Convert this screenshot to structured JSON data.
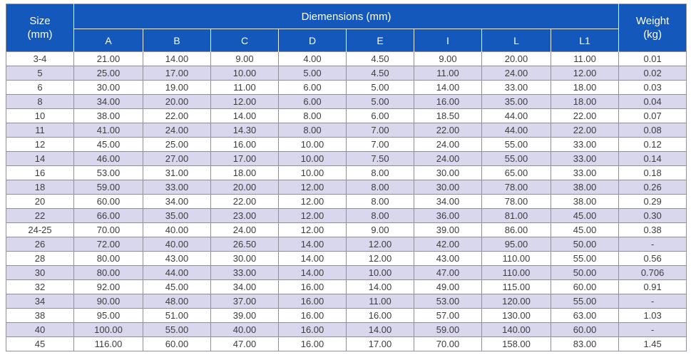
{
  "table": {
    "header": {
      "size": {
        "line1": "Size",
        "line2": "(mm)"
      },
      "dimensions_label": "Diemensions (mm)",
      "weight": {
        "line1": "Weight",
        "line2": "(kg)"
      },
      "sub_columns": [
        "A",
        "B",
        "C",
        "D",
        "E",
        "I",
        "L",
        "L1"
      ]
    },
    "rows": [
      [
        "3-4",
        "21.00",
        "14.00",
        "9.00",
        "4.00",
        "4.50",
        "9.00",
        "20.00",
        "11.00",
        "0.01"
      ],
      [
        "5",
        "25.00",
        "17.00",
        "10.00",
        "5.00",
        "4.50",
        "11.00",
        "24.00",
        "12.00",
        "0.02"
      ],
      [
        "6",
        "30.00",
        "19.00",
        "11.00",
        "6.00",
        "5.00",
        "14.00",
        "33.00",
        "18.00",
        "0.03"
      ],
      [
        "8",
        "34.00",
        "20.00",
        "12.00",
        "6.00",
        "5.00",
        "16.00",
        "35.00",
        "18.00",
        "0.04"
      ],
      [
        "10",
        "38.00",
        "22.00",
        "14.00",
        "8.00",
        "6.00",
        "18.50",
        "44.00",
        "22.00",
        "0.07"
      ],
      [
        "11",
        "41.00",
        "24.00",
        "14.30",
        "8.00",
        "7.00",
        "22.00",
        "44.00",
        "22.00",
        "0.08"
      ],
      [
        "12",
        "45.00",
        "25.00",
        "16.00",
        "10.00",
        "7.00",
        "24.00",
        "55.00",
        "33.00",
        "0.12"
      ],
      [
        "14",
        "46.00",
        "27.00",
        "17.00",
        "10.00",
        "7.50",
        "24.00",
        "55.00",
        "33.00",
        "0.14"
      ],
      [
        "16",
        "53.00",
        "31.00",
        "18.00",
        "10.00",
        "8.00",
        "30.00",
        "65.00",
        "33.00",
        "0.18"
      ],
      [
        "18",
        "59.00",
        "33.00",
        "20.00",
        "12.00",
        "8.00",
        "30.00",
        "78.00",
        "38.00",
        "0.26"
      ],
      [
        "20",
        "60.00",
        "34.00",
        "22.00",
        "12.00",
        "8.00",
        "34.00",
        "78.00",
        "38.00",
        "0.29"
      ],
      [
        "22",
        "66.00",
        "35.00",
        "23.00",
        "12.00",
        "8.00",
        "36.00",
        "81.00",
        "45.00",
        "0.30"
      ],
      [
        "24-25",
        "70.00",
        "40.00",
        "24.00",
        "12.00",
        "9.00",
        "39.00",
        "86.00",
        "45.00",
        "0.38"
      ],
      [
        "26",
        "72.00",
        "40.00",
        "26.50",
        "14.00",
        "12.00",
        "42.00",
        "95.00",
        "50.00",
        "-"
      ],
      [
        "28",
        "80.00",
        "43.00",
        "30.00",
        "14.00",
        "12.00",
        "43.00",
        "110.00",
        "55.00",
        "0.56"
      ],
      [
        "30",
        "80.00",
        "44.00",
        "33.00",
        "14.00",
        "10.00",
        "47.00",
        "110.00",
        "50.00",
        "0.706"
      ],
      [
        "32",
        "92.00",
        "45.00",
        "34.00",
        "16.00",
        "14.00",
        "49.00",
        "115.00",
        "60.00",
        "0.91"
      ],
      [
        "34",
        "90.00",
        "48.00",
        "37.00",
        "16.00",
        "11.00",
        "53.00",
        "120.00",
        "55.00",
        "-"
      ],
      [
        "38",
        "95.00",
        "51.00",
        "39.00",
        "16.00",
        "16.00",
        "57.00",
        "130.00",
        "63.00",
        "1.03"
      ],
      [
        "40",
        "100.00",
        "55.00",
        "40.00",
        "16.00",
        "14.00",
        "59.00",
        "140.00",
        "60.00",
        "-"
      ],
      [
        "45",
        "116.00",
        "60.00",
        "47.00",
        "16.00",
        "17.00",
        "70.00",
        "158.00",
        "83.00",
        "1.45"
      ]
    ],
    "colors": {
      "header_bg": "#1558BC",
      "header_text": "#ffffff",
      "row_bg": "#ffffff",
      "row_alt_bg": "#D9D7EE",
      "grid_border": "#8F8F99",
      "body_text": "#3D3D3D"
    }
  }
}
